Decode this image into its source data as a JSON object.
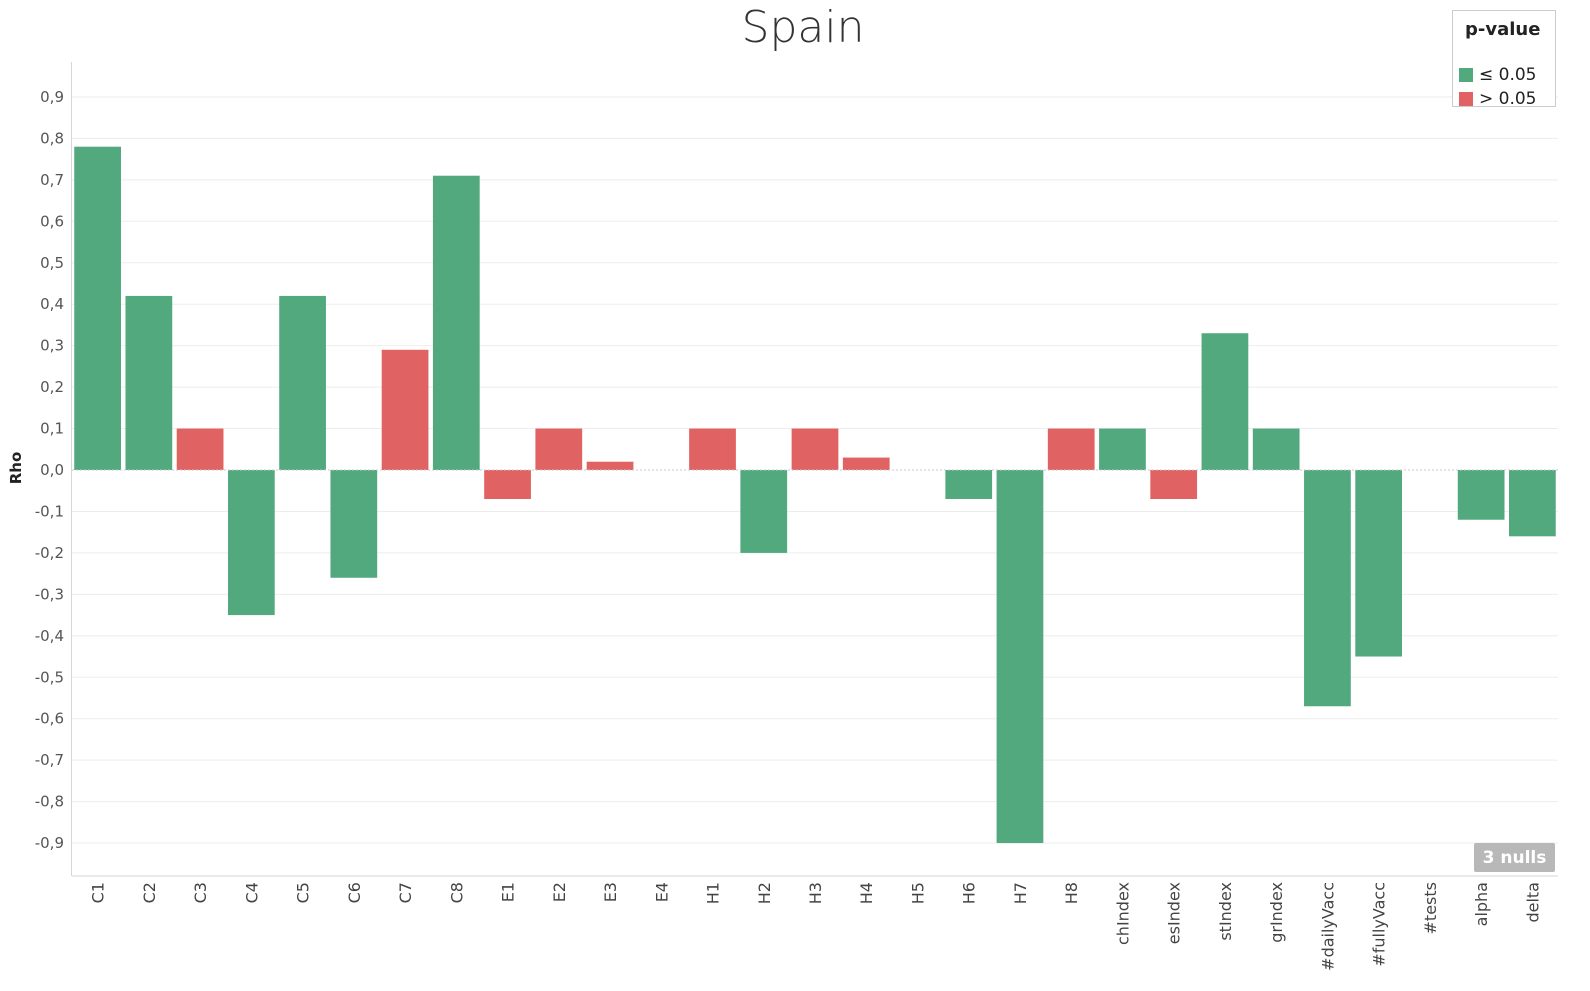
{
  "chart_data": {
    "type": "bar",
    "title": "Spain",
    "ylabel": "Rho",
    "xlabel": "",
    "ylim": [
      -0.98,
      0.98
    ],
    "yticks": [
      "0,9",
      "0,8",
      "0,7",
      "0,6",
      "0,5",
      "0,4",
      "0,3",
      "0,2",
      "0,1",
      "0,0",
      "-0,1",
      "-0,2",
      "-0,3",
      "-0,4",
      "-0,5",
      "-0,6",
      "-0,7",
      "-0,8",
      "-0,9"
    ],
    "ytick_values": [
      0.9,
      0.8,
      0.7,
      0.6,
      0.5,
      0.4,
      0.3,
      0.2,
      0.1,
      0.0,
      -0.1,
      -0.2,
      -0.3,
      -0.4,
      -0.5,
      -0.6,
      -0.7,
      -0.8,
      -0.9
    ],
    "categories": [
      "C1",
      "C2",
      "C3",
      "C4",
      "C5",
      "C6",
      "C7",
      "C8",
      "E1",
      "E2",
      "E3",
      "E4",
      "H1",
      "H2",
      "H3",
      "H4",
      "H5",
      "H6",
      "H7",
      "H8",
      "chIndex",
      "esIndex",
      "stIndex",
      "grIndex",
      "#dailyVacc",
      "#fullyVacc",
      "#tests",
      "alpha",
      "delta"
    ],
    "values": [
      0.78,
      0.42,
      0.1,
      -0.35,
      0.42,
      -0.26,
      0.29,
      0.71,
      -0.07,
      0.1,
      0.02,
      null,
      0.1,
      -0.2,
      0.1,
      0.03,
      null,
      -0.07,
      -0.9,
      0.1,
      0.1,
      -0.07,
      0.33,
      0.1,
      -0.57,
      -0.45,
      null,
      -0.12,
      -0.16
    ],
    "significance": [
      "le",
      "le",
      "gt",
      "le",
      "le",
      "le",
      "gt",
      "le",
      "gt",
      "gt",
      "gt",
      null,
      "gt",
      "le",
      "gt",
      "gt",
      null,
      "le",
      "le",
      "gt",
      "le",
      "gt",
      "le",
      "le",
      "le",
      "le",
      null,
      "le",
      "le"
    ],
    "legend": {
      "title": "p-value",
      "position": "top-right",
      "items": [
        {
          "key": "le",
          "label": "≤ 0.05",
          "color": "#53a97e"
        },
        {
          "key": "gt",
          "label": "> 0.05",
          "color": "#e06262"
        }
      ]
    },
    "nulls_label": "3 nulls",
    "grid": true
  }
}
